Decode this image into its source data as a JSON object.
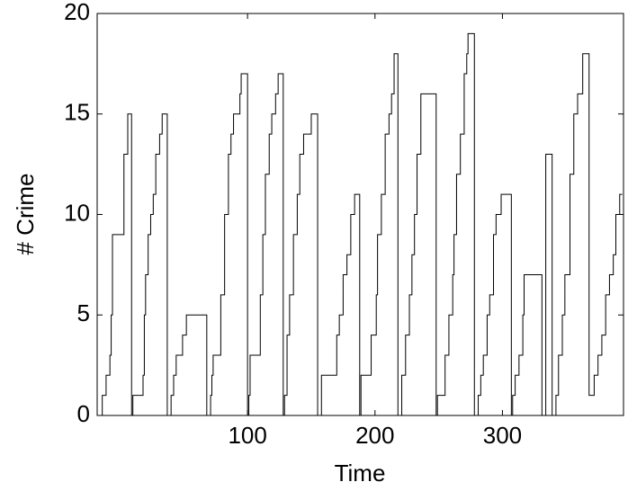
{
  "chart_data": {
    "type": "line",
    "x_label": "Time",
    "y_label": "# Crime",
    "step": true,
    "x": [
      -16,
      -14,
      -11,
      -8,
      -7,
      -6,
      2,
      3,
      5,
      6,
      9,
      10,
      16,
      18,
      19,
      20,
      22,
      24,
      26,
      28,
      31,
      33,
      35,
      37,
      40,
      42,
      44,
      47,
      49,
      52,
      66,
      68,
      70,
      71,
      72,
      73,
      78,
      79,
      82,
      85,
      87,
      89,
      93,
      94,
      95,
      98,
      100,
      101,
      102,
      109,
      110,
      112,
      114,
      117,
      119,
      122,
      124,
      126,
      128,
      129,
      131,
      133,
      136,
      139,
      141,
      144,
      148,
      150,
      153,
      155,
      158,
      167,
      170,
      172,
      175,
      178,
      181,
      184,
      186,
      188,
      189,
      195,
      197,
      201,
      202,
      205,
      208,
      211,
      213,
      215,
      217,
      218,
      221,
      224,
      227,
      229,
      231,
      233,
      236,
      247,
      248,
      249,
      254,
      255,
      258,
      261,
      262,
      264,
      267,
      270,
      272,
      273,
      276,
      278,
      281,
      283,
      285,
      288,
      290,
      293,
      295,
      299,
      305,
      307,
      308,
      310,
      313,
      316,
      317,
      329,
      331,
      334,
      336,
      339,
      341,
      342,
      344,
      347,
      349,
      353,
      356,
      359,
      363,
      366,
      368,
      371,
      372,
      375,
      378,
      381,
      384,
      387,
      389,
      392,
      394
    ],
    "series": [
      {
        "color": "#000000",
        "values": [
          0,
          1,
          2,
          3,
          5,
          9,
          9,
          13,
          13,
          15,
          0,
          1,
          1,
          2,
          5,
          7,
          9,
          10,
          11,
          13,
          14,
          15,
          15,
          0,
          1,
          2,
          3,
          3,
          4,
          5,
          5,
          0,
          0,
          1,
          2,
          3,
          3,
          6,
          10,
          13,
          14,
          15,
          15,
          16,
          17,
          17,
          0,
          1,
          3,
          3,
          6,
          9,
          12,
          14,
          15,
          16,
          17,
          17,
          0,
          1,
          4,
          6,
          9,
          11,
          13,
          14,
          14,
          15,
          15,
          0,
          2,
          2,
          4,
          5,
          7,
          8,
          10,
          11,
          11,
          0,
          2,
          2,
          4,
          6,
          9,
          11,
          14,
          15,
          16,
          18,
          18,
          0,
          2,
          4,
          6,
          8,
          10,
          13,
          16,
          16,
          0,
          1,
          1,
          3,
          5,
          7,
          9,
          12,
          14,
          17,
          18,
          19,
          19,
          0,
          1,
          2,
          3,
          5,
          6,
          9,
          10,
          11,
          11,
          0,
          1,
          2,
          3,
          5,
          7,
          7,
          0,
          13,
          13,
          0,
          0,
          1,
          3,
          5,
          7,
          12,
          15,
          16,
          18,
          18,
          1,
          1,
          2,
          3,
          4,
          6,
          7,
          8,
          10,
          11,
          11
        ]
      }
    ],
    "xlim": [
      -18,
      395
    ],
    "xticks": [
      100,
      200,
      300
    ],
    "ylim": [
      0,
      20
    ],
    "yticks": [
      0,
      5,
      10,
      15,
      20
    ]
  }
}
